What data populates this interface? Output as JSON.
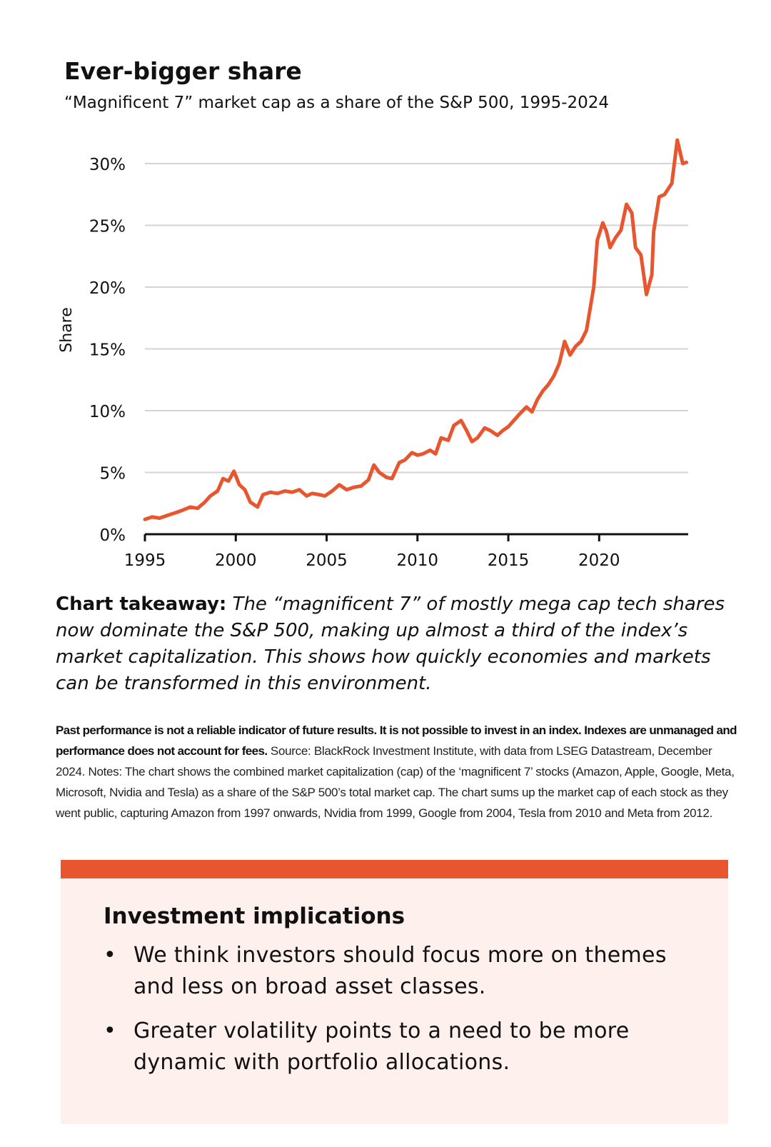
{
  "header": {
    "title": "Ever-bigger share",
    "subtitle": "“Magnificent 7” market cap as a share of the S&P 500, 1995-2024"
  },
  "chart_data": {
    "type": "line",
    "ylabel": "Share",
    "xlabel": "",
    "xlim": [
      1995,
      2024.9
    ],
    "ylim": [
      0,
      30
    ],
    "x_ticks": [
      1995,
      2000,
      2005,
      2010,
      2015,
      2020
    ],
    "y_ticks": [
      0,
      5,
      10,
      15,
      20,
      25,
      30
    ],
    "y_tick_labels": [
      "0%",
      "5%",
      "10%",
      "15%",
      "20%",
      "25%",
      "30%"
    ],
    "grid": true,
    "line_color": "#e8562f",
    "series": [
      {
        "x": [
          1995.0,
          1995.4,
          1995.8,
          1996.2,
          1996.6,
          1997.0,
          1997.5,
          1997.9,
          1998.3,
          1998.6,
          1999.0,
          1999.3,
          1999.6,
          1999.9,
          2000.2,
          2000.5,
          2000.8,
          2001.2,
          2001.5,
          2001.9,
          2002.3,
          2002.7,
          2003.1,
          2003.5,
          2003.9,
          2004.2,
          2004.6,
          2004.9,
          2005.3,
          2005.7,
          2006.1,
          2006.5,
          2006.9,
          2007.3,
          2007.6,
          2007.9,
          2008.3,
          2008.6,
          2009.0,
          2009.3,
          2009.7,
          2010.0,
          2010.3,
          2010.7,
          2011.0,
          2011.3,
          2011.7,
          2012.0,
          2012.4,
          2012.7,
          2013.0,
          2013.3,
          2013.7,
          2014.0,
          2014.4,
          2014.7,
          2015.0,
          2015.3,
          2015.6,
          2016.0,
          2016.3,
          2016.6,
          2016.9,
          2017.2,
          2017.5,
          2017.8,
          2018.1,
          2018.4,
          2018.7,
          2019.0,
          2019.3,
          2019.7,
          2019.9,
          2020.2,
          2020.4,
          2020.6,
          2020.9,
          2021.2,
          2021.5,
          2021.8,
          2022.0,
          2022.3,
          2022.6,
          2022.9,
          2023.0,
          2023.3,
          2023.6,
          2024.0,
          2024.3,
          2024.6,
          2024.8
        ],
        "values": [
          1.2,
          1.4,
          1.3,
          1.5,
          1.7,
          1.9,
          2.2,
          2.1,
          2.6,
          3.1,
          3.5,
          4.5,
          4.3,
          5.1,
          4.0,
          3.6,
          2.6,
          2.2,
          3.2,
          3.4,
          3.3,
          3.5,
          3.4,
          3.6,
          3.1,
          3.3,
          3.2,
          3.1,
          3.5,
          4.0,
          3.6,
          3.8,
          3.9,
          4.4,
          5.6,
          5.0,
          4.6,
          4.5,
          5.8,
          6.0,
          6.6,
          6.4,
          6.5,
          6.8,
          6.5,
          7.8,
          7.6,
          8.8,
          9.2,
          8.4,
          7.5,
          7.8,
          8.6,
          8.4,
          8.0,
          8.4,
          8.7,
          9.2,
          9.7,
          10.3,
          9.9,
          10.9,
          11.6,
          12.1,
          12.8,
          13.8,
          15.6,
          14.5,
          15.2,
          15.6,
          16.5,
          20.0,
          23.8,
          25.2,
          24.5,
          23.2,
          24.0,
          24.6,
          26.7,
          26.0,
          23.2,
          22.6,
          19.4,
          21.0,
          24.5,
          27.3,
          27.5,
          28.4,
          31.9,
          30.0,
          30.1
        ]
      }
    ]
  },
  "takeaway": {
    "label": "Chart takeaway:",
    "text": " The “magnificent 7” of mostly mega cap tech shares now dominate the S&P 500, making up almost a third of the index’s market capitalization. This shows how quickly economies and markets can be transformed in this environment."
  },
  "footnote": {
    "bold": "Past performance is not a reliable indicator of future results. It is not possible to invest in an index. Indexes are unmanaged and performance does not account for fees.",
    "text": " Source: BlackRock Investment Institute, with data from LSEG Datastream, December 2024. Notes: The chart shows the combined market capitalization (cap) of the ‘magnificent 7’ stocks (Amazon, Apple, Google, Meta, Microsoft, Nvidia and Tesla) as a share of the S&P 500’s total market cap. The chart sums up the market cap of each stock as they went public, capturing Amazon from 1997 onwards, Nvidia from 1999, Google from 2004, Tesla from 2010 and Meta from 2012."
  },
  "implications": {
    "title": "Investment implications",
    "bullet_glyph": "•",
    "bullets": [
      "We think investors should focus more on themes and less on broad asset classes.",
      "Greater volatility points to a need to be more dynamic with portfolio allocations."
    ],
    "accent_color": "#e8562f",
    "panel_color": "#fdf0ed"
  }
}
